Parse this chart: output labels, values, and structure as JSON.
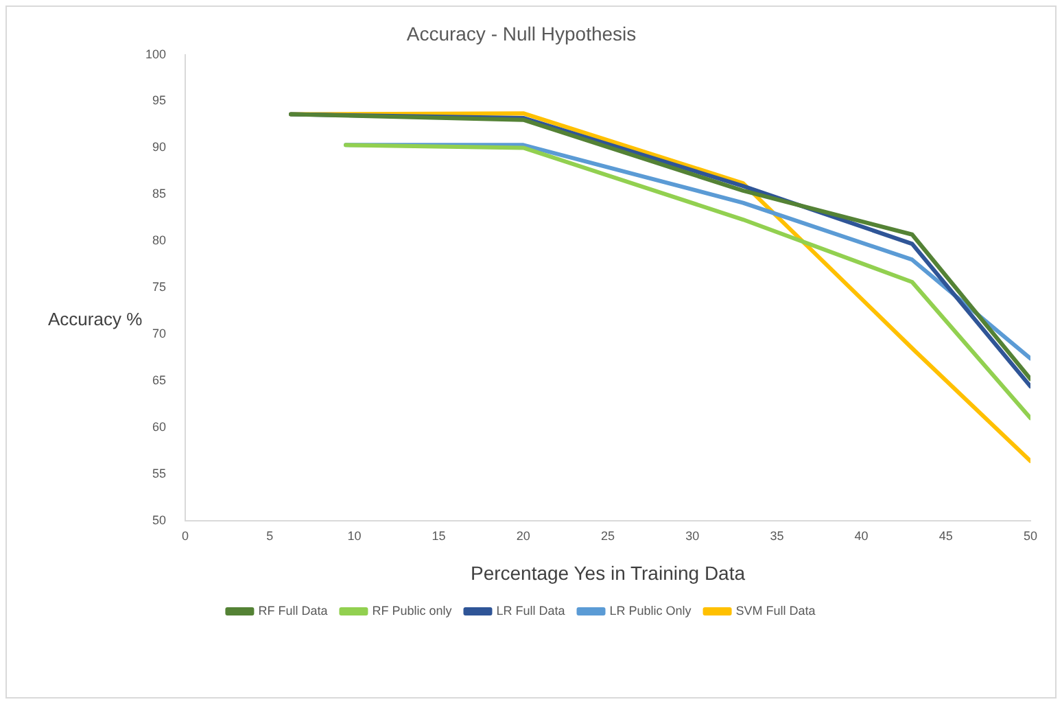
{
  "chart_data": {
    "type": "line",
    "title": "Accuracy - Null Hypothesis",
    "xlabel": "Percentage Yes in Training Data",
    "ylabel": "Accuracy %",
    "xlim": [
      0,
      50
    ],
    "xticks": [
      0,
      5,
      10,
      15,
      20,
      25,
      30,
      35,
      40,
      45,
      50
    ],
    "ylim": [
      50,
      100
    ],
    "yticks": [
      50,
      55,
      60,
      65,
      70,
      75,
      80,
      85,
      90,
      95,
      100
    ],
    "grid": false,
    "legend": "bottom",
    "marker": "none",
    "series": [
      {
        "name": "RF Full Data",
        "color": "#548235",
        "x": [
          6.25,
          20,
          33,
          43,
          50
        ],
        "values": [
          93.6,
          93.0,
          85.4,
          80.7,
          65.2
        ]
      },
      {
        "name": "RF Public only",
        "color": "#92d050",
        "x": [
          9.5,
          20,
          33,
          43,
          50
        ],
        "values": [
          90.3,
          90.0,
          82.3,
          75.6,
          61.0
        ]
      },
      {
        "name": "LR Full Data",
        "color": "#2f5597",
        "x": [
          6.25,
          20,
          33,
          43,
          50
        ],
        "values": [
          93.6,
          93.2,
          85.9,
          79.7,
          64.4
        ]
      },
      {
        "name": "LR Public Only",
        "color": "#5b9bd5",
        "x": [
          9.5,
          20,
          33,
          43,
          50
        ],
        "values": [
          90.3,
          90.3,
          84.1,
          78.0,
          67.4
        ]
      },
      {
        "name": "SVM Full Data",
        "color": "#ffc000",
        "x": [
          6.25,
          20,
          33,
          43,
          50
        ],
        "values": [
          93.6,
          93.7,
          86.2,
          68.5,
          56.4
        ]
      }
    ]
  }
}
